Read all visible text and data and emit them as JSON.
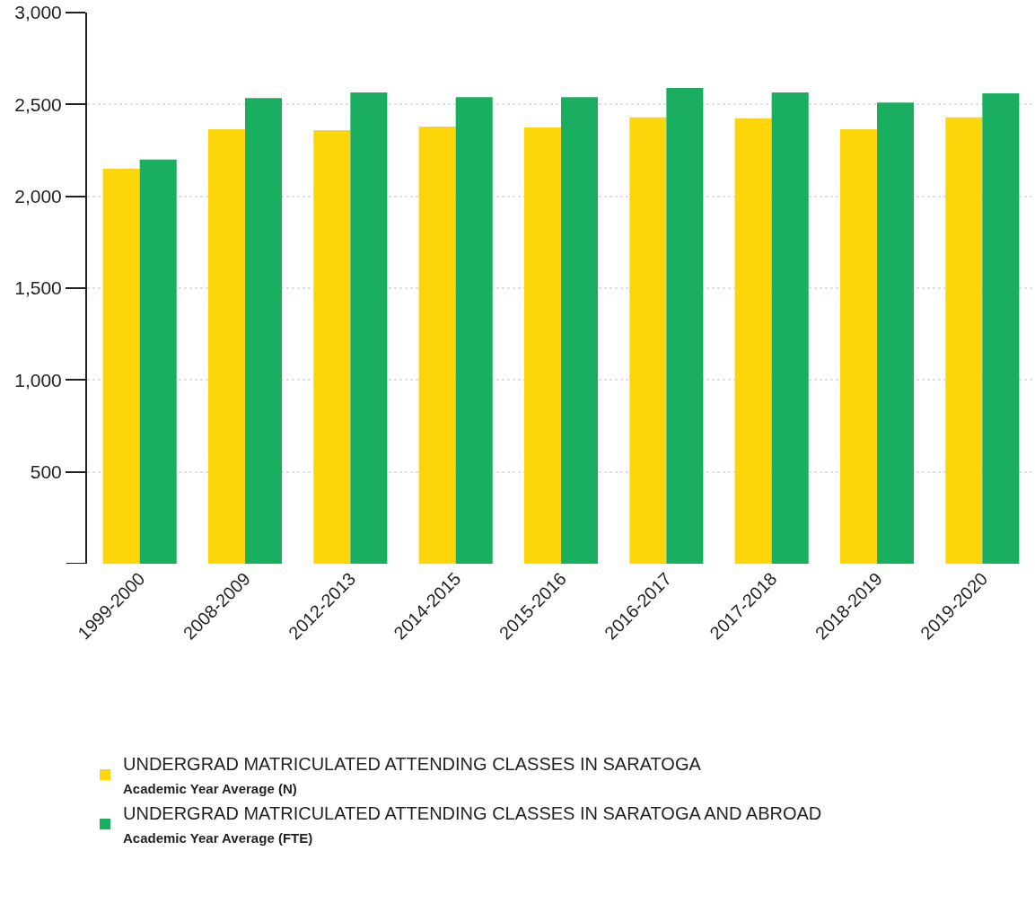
{
  "chart_data": {
    "type": "bar",
    "categories": [
      "1999-2000",
      "2008-2009",
      "2012-2013",
      "2014-2015",
      "2015-2016",
      "2016-2017",
      "2017-2018",
      "2018-2019",
      "2019-2020"
    ],
    "series": [
      {
        "name": "UNDERGRAD MATRICULATED ATTENDING CLASSES IN SARATOGA\nAcademic Year Average (N)",
        "color": "#fdd60a",
        "values": [
          2150,
          2365,
          2360,
          2380,
          2375,
          2430,
          2425,
          2365,
          2430
        ]
      },
      {
        "name": "UNDERGRAD MATRICULATED ATTENDING CLASSES IN SARATOGA AND ABROAD\nAcademic Year Average (FTE)",
        "color": "#1aaf60",
        "values": [
          2200,
          2535,
          2565,
          2540,
          2540,
          2590,
          2565,
          2510,
          2560
        ]
      }
    ],
    "ylim": [
      0,
      3000
    ],
    "yticks": [
      {
        "value": 500,
        "label": "500"
      },
      {
        "value": 1000,
        "label": "1,000"
      },
      {
        "value": 1500,
        "label": "1,500"
      },
      {
        "value": 2000,
        "label": "2,000"
      },
      {
        "value": 2500,
        "label": "2,500"
      },
      {
        "value": 3000,
        "label": "3,000"
      }
    ],
    "grid": "y",
    "legend": "bottom"
  }
}
